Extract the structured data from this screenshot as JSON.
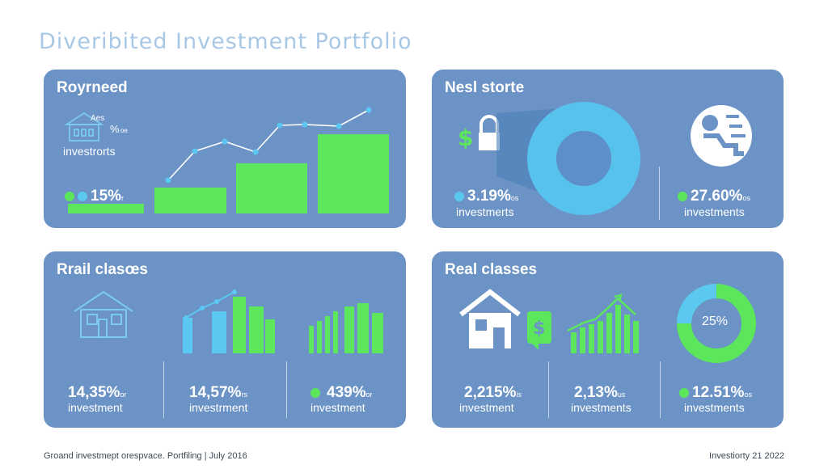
{
  "header": {
    "title": "Diveribited Investment Portfolio"
  },
  "panels": {
    "p1": {
      "title": "Royrneed",
      "icon_text": "Aes",
      "icon_pct": "%",
      "icon_suffix": "oe",
      "icon_label": "investrorts",
      "stat_value": "15%",
      "stat_suffix": "r"
    },
    "p2": {
      "title": "Nesl storte",
      "stat1_value": "3.19%",
      "stat1_suffix": "os",
      "stat1_label": "investmerts",
      "stat2_value": "27.60%",
      "stat2_suffix": "os",
      "stat2_label": "investments"
    },
    "p3": {
      "title": "Rrail clasœs",
      "stats": [
        {
          "value": "14,35%",
          "suffix": "or",
          "label": "investment"
        },
        {
          "value": "14,57%",
          "suffix": "rs",
          "label": "investrment"
        },
        {
          "value": "439%",
          "suffix": "or",
          "label": "investment"
        }
      ]
    },
    "p4": {
      "title": "Real classes",
      "donut_label": "25%",
      "stats": [
        {
          "value": "2,215%",
          "suffix": "is",
          "label": "investment"
        },
        {
          "value": "2,13%",
          "suffix": "us",
          "label": "investments"
        },
        {
          "value": "12.51%",
          "suffix": "os",
          "label": "investments"
        }
      ]
    }
  },
  "footer": {
    "left": "Groand investmept orespvace. Portfiling | July 2016",
    "right": "Investiorty 21 2022"
  },
  "colors": {
    "panel": "#6b93c6",
    "green": "#5ce65c",
    "light_blue": "#5bc8f2",
    "title": "#a9c8e6"
  }
}
